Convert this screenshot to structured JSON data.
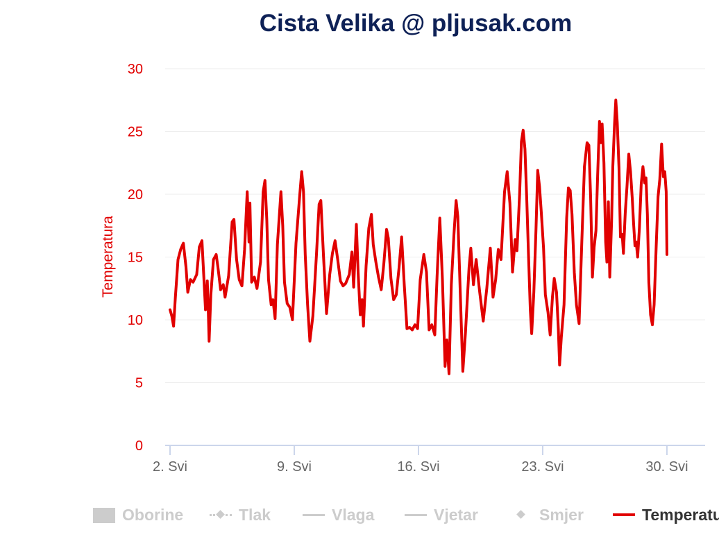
{
  "chart_data": {
    "type": "line",
    "title": "Cista Velika @ pljusak.com",
    "ylabel": "Temperatura",
    "xlabel": "",
    "ylim": [
      0,
      30
    ],
    "y_ticks": [
      0,
      5,
      10,
      15,
      20,
      25,
      30
    ],
    "x_ticks": [
      {
        "day": 2,
        "label": "2. Svi"
      },
      {
        "day": 9,
        "label": "9. Svi"
      },
      {
        "day": 16,
        "label": "16. Svi"
      },
      {
        "day": 23,
        "label": "23. Svi"
      },
      {
        "day": 30,
        "label": "30. Svi"
      }
    ],
    "grid": true,
    "legend_position": "bottom",
    "line_color": "#e10000",
    "series": [
      {
        "name": "Temperatura",
        "points": [
          [
            2.0,
            10.8
          ],
          [
            2.1,
            10.3
          ],
          [
            2.2,
            9.5
          ],
          [
            2.3,
            11.8
          ],
          [
            2.45,
            14.8
          ],
          [
            2.6,
            15.6
          ],
          [
            2.75,
            16.1
          ],
          [
            2.9,
            14.2
          ],
          [
            3.0,
            12.2
          ],
          [
            3.15,
            13.2
          ],
          [
            3.3,
            13.0
          ],
          [
            3.5,
            13.6
          ],
          [
            3.65,
            15.8
          ],
          [
            3.8,
            16.3
          ],
          [
            3.9,
            13.5
          ],
          [
            4.0,
            10.8
          ],
          [
            4.1,
            13.1
          ],
          [
            4.15,
            10.9
          ],
          [
            4.2,
            8.3
          ],
          [
            4.3,
            12.0
          ],
          [
            4.45,
            14.8
          ],
          [
            4.6,
            15.2
          ],
          [
            4.7,
            14.2
          ],
          [
            4.85,
            12.4
          ],
          [
            5.0,
            12.8
          ],
          [
            5.1,
            11.8
          ],
          [
            5.3,
            13.5
          ],
          [
            5.5,
            17.8
          ],
          [
            5.6,
            18.0
          ],
          [
            5.75,
            14.8
          ],
          [
            5.9,
            13.2
          ],
          [
            6.05,
            12.7
          ],
          [
            6.2,
            15.6
          ],
          [
            6.35,
            20.2
          ],
          [
            6.45,
            16.2
          ],
          [
            6.5,
            19.3
          ],
          [
            6.6,
            13.0
          ],
          [
            6.75,
            13.4
          ],
          [
            6.9,
            12.5
          ],
          [
            7.1,
            14.6
          ],
          [
            7.25,
            20.2
          ],
          [
            7.35,
            21.1
          ],
          [
            7.45,
            18.0
          ],
          [
            7.55,
            13.2
          ],
          [
            7.7,
            11.2
          ],
          [
            7.8,
            11.6
          ],
          [
            7.92,
            10.1
          ],
          [
            8.05,
            16.0
          ],
          [
            8.25,
            20.2
          ],
          [
            8.35,
            17.5
          ],
          [
            8.45,
            13.0
          ],
          [
            8.6,
            11.3
          ],
          [
            8.75,
            11.0
          ],
          [
            8.9,
            10.0
          ],
          [
            9.1,
            16.1
          ],
          [
            9.3,
            19.8
          ],
          [
            9.42,
            21.8
          ],
          [
            9.52,
            20.2
          ],
          [
            9.62,
            15.2
          ],
          [
            9.75,
            11.2
          ],
          [
            9.88,
            8.3
          ],
          [
            10.05,
            10.3
          ],
          [
            10.25,
            15.2
          ],
          [
            10.4,
            19.2
          ],
          [
            10.5,
            19.5
          ],
          [
            10.65,
            15.0
          ],
          [
            10.82,
            10.5
          ],
          [
            11.0,
            13.6
          ],
          [
            11.15,
            15.3
          ],
          [
            11.3,
            16.3
          ],
          [
            11.45,
            14.8
          ],
          [
            11.6,
            13.1
          ],
          [
            11.75,
            12.7
          ],
          [
            11.9,
            12.9
          ],
          [
            12.1,
            13.6
          ],
          [
            12.25,
            15.4
          ],
          [
            12.35,
            12.6
          ],
          [
            12.5,
            17.6
          ],
          [
            12.6,
            13.8
          ],
          [
            12.72,
            10.4
          ],
          [
            12.82,
            11.6
          ],
          [
            12.9,
            9.5
          ],
          [
            13.05,
            14.3
          ],
          [
            13.2,
            17.3
          ],
          [
            13.35,
            18.4
          ],
          [
            13.45,
            16.0
          ],
          [
            13.6,
            14.6
          ],
          [
            13.75,
            13.4
          ],
          [
            13.9,
            12.4
          ],
          [
            14.05,
            14.5
          ],
          [
            14.2,
            17.2
          ],
          [
            14.3,
            16.5
          ],
          [
            14.45,
            13.3
          ],
          [
            14.6,
            11.6
          ],
          [
            14.75,
            12.0
          ],
          [
            14.9,
            14.1
          ],
          [
            15.05,
            16.6
          ],
          [
            15.2,
            12.8
          ],
          [
            15.35,
            9.3
          ],
          [
            15.5,
            9.4
          ],
          [
            15.65,
            9.2
          ],
          [
            15.8,
            9.6
          ],
          [
            15.95,
            9.3
          ],
          [
            16.1,
            13.2
          ],
          [
            16.3,
            15.2
          ],
          [
            16.45,
            13.8
          ],
          [
            16.6,
            9.2
          ],
          [
            16.75,
            9.6
          ],
          [
            16.92,
            8.8
          ],
          [
            17.05,
            13.5
          ],
          [
            17.2,
            18.1
          ],
          [
            17.35,
            13.2
          ],
          [
            17.5,
            6.3
          ],
          [
            17.6,
            8.4
          ],
          [
            17.72,
            5.7
          ],
          [
            17.85,
            12.8
          ],
          [
            18.0,
            16.8
          ],
          [
            18.12,
            19.5
          ],
          [
            18.22,
            18.2
          ],
          [
            18.35,
            12.3
          ],
          [
            18.5,
            5.9
          ],
          [
            18.65,
            9.0
          ],
          [
            18.85,
            14.2
          ],
          [
            18.95,
            15.7
          ],
          [
            19.1,
            12.8
          ],
          [
            19.25,
            14.8
          ],
          [
            19.45,
            12.2
          ],
          [
            19.65,
            9.9
          ],
          [
            19.85,
            12.5
          ],
          [
            20.05,
            15.7
          ],
          [
            20.2,
            11.8
          ],
          [
            20.35,
            13.2
          ],
          [
            20.5,
            15.6
          ],
          [
            20.65,
            14.8
          ],
          [
            20.85,
            20.2
          ],
          [
            21.0,
            21.8
          ],
          [
            21.15,
            19.3
          ],
          [
            21.3,
            13.8
          ],
          [
            21.45,
            16.4
          ],
          [
            21.55,
            15.5
          ],
          [
            21.7,
            20.0
          ],
          [
            21.8,
            24.2
          ],
          [
            21.9,
            25.1
          ],
          [
            22.0,
            23.6
          ],
          [
            22.1,
            19.6
          ],
          [
            22.2,
            15.2
          ],
          [
            22.3,
            10.8
          ],
          [
            22.38,
            8.9
          ],
          [
            22.5,
            12.2
          ],
          [
            22.62,
            17.2
          ],
          [
            22.72,
            21.9
          ],
          [
            22.82,
            20.6
          ],
          [
            22.92,
            18.6
          ],
          [
            23.05,
            15.7
          ],
          [
            23.15,
            12.0
          ],
          [
            23.3,
            10.6
          ],
          [
            23.42,
            8.8
          ],
          [
            23.55,
            11.8
          ],
          [
            23.65,
            13.3
          ],
          [
            23.78,
            12.2
          ],
          [
            23.88,
            9.3
          ],
          [
            23.95,
            6.4
          ],
          [
            24.05,
            8.6
          ],
          [
            24.2,
            11.2
          ],
          [
            24.35,
            18.1
          ],
          [
            24.45,
            20.5
          ],
          [
            24.55,
            20.3
          ],
          [
            24.65,
            18.4
          ],
          [
            24.78,
            13.8
          ],
          [
            24.9,
            11.2
          ],
          [
            25.05,
            9.7
          ],
          [
            25.2,
            16.0
          ],
          [
            25.35,
            22.2
          ],
          [
            25.5,
            24.1
          ],
          [
            25.6,
            23.9
          ],
          [
            25.7,
            19.8
          ],
          [
            25.8,
            13.4
          ],
          [
            25.9,
            15.8
          ],
          [
            26.0,
            17.1
          ],
          [
            26.1,
            21.6
          ],
          [
            26.2,
            25.8
          ],
          [
            26.28,
            24.1
          ],
          [
            26.35,
            25.6
          ],
          [
            26.45,
            22.5
          ],
          [
            26.55,
            16.2
          ],
          [
            26.62,
            14.6
          ],
          [
            26.7,
            19.4
          ],
          [
            26.78,
            13.4
          ],
          [
            26.88,
            17.8
          ],
          [
            26.95,
            22.2
          ],
          [
            27.05,
            25.6
          ],
          [
            27.12,
            27.5
          ],
          [
            27.2,
            25.7
          ],
          [
            27.3,
            22.1
          ],
          [
            27.38,
            16.6
          ],
          [
            27.48,
            16.8
          ],
          [
            27.55,
            15.3
          ],
          [
            27.65,
            18.5
          ],
          [
            27.75,
            20.6
          ],
          [
            27.85,
            23.2
          ],
          [
            27.95,
            21.8
          ],
          [
            28.05,
            19.6
          ],
          [
            28.12,
            17.7
          ],
          [
            28.2,
            15.9
          ],
          [
            28.27,
            16.2
          ],
          [
            28.35,
            15.0
          ],
          [
            28.45,
            17.3
          ],
          [
            28.55,
            20.8
          ],
          [
            28.65,
            22.2
          ],
          [
            28.75,
            20.9
          ],
          [
            28.82,
            21.3
          ],
          [
            28.9,
            18.4
          ],
          [
            28.98,
            13.0
          ],
          [
            29.08,
            10.4
          ],
          [
            29.18,
            9.6
          ],
          [
            29.28,
            11.2
          ],
          [
            29.4,
            16.0
          ],
          [
            29.5,
            19.8
          ],
          [
            29.6,
            21.2
          ],
          [
            29.7,
            24.0
          ],
          [
            29.8,
            21.4
          ],
          [
            29.88,
            21.8
          ],
          [
            29.96,
            20.2
          ],
          [
            30.0,
            15.2
          ]
        ]
      }
    ]
  },
  "legend": {
    "items": [
      {
        "label": "Oborine",
        "symbol": "box",
        "active": false
      },
      {
        "label": "Tlak",
        "symbol": "dash-diamond",
        "active": false
      },
      {
        "label": "Vlaga",
        "symbol": "line",
        "active": false
      },
      {
        "label": "Vjetar",
        "symbol": "line",
        "active": false
      },
      {
        "label": "Smjer",
        "symbol": "diamond",
        "active": false
      },
      {
        "label": "Temperatura",
        "symbol": "red-line",
        "active": true
      }
    ]
  }
}
